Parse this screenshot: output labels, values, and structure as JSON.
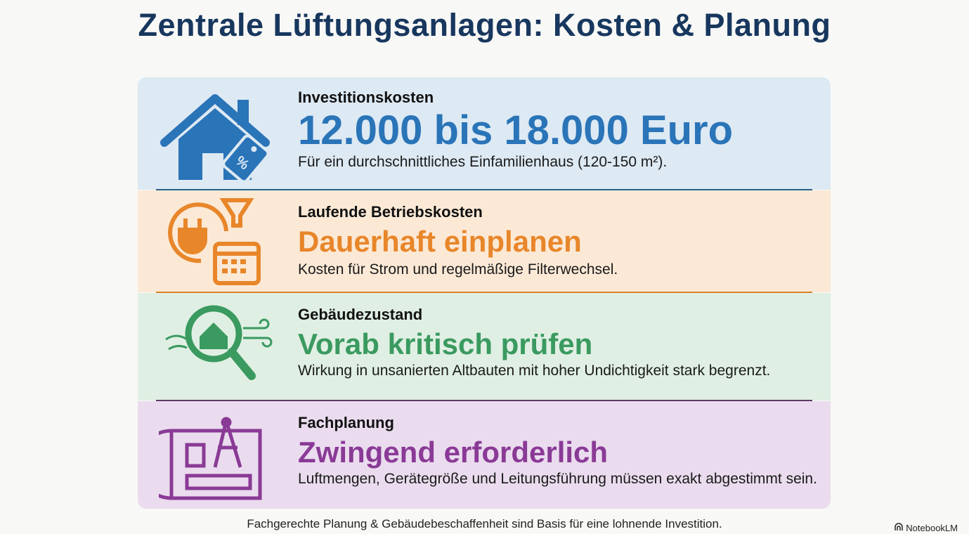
{
  "title": "Zentrale Lüftungsanlagen: Kosten & Planung",
  "sections": [
    {
      "label": "Investitionskosten",
      "headline": "12.000 bis 18.000 Euro",
      "body": "Für ein durchschnittliches Einfamilienhaus (120-150 m²).",
      "icon": "house-price-tag-icon",
      "color": "#2a74b8",
      "bg": "#dde9f3"
    },
    {
      "label": "Laufende Betriebskosten",
      "headline": "Dauerhaft einplanen",
      "body": "Kosten für Strom und regelmäßige Filterwechsel.",
      "icon": "plug-filter-calendar-icon",
      "color": "#e8862a",
      "bg": "#fbe9d6"
    },
    {
      "label": "Gebäudezustand",
      "headline": "Vorab kritisch prüfen",
      "body": "Wirkung in unsanierten Altbauten mit hoher Undichtigkeit stark begrenzt.",
      "icon": "magnifier-house-icon",
      "color": "#3a9a60",
      "bg": "#e0efe3"
    },
    {
      "label": "Fachplanung",
      "headline": "Zwingend erforderlich",
      "body": "Luftmengen, Gerätegröße und Leitungsführung müssen exakt abgestimmt sein.",
      "icon": "blueprint-compass-icon",
      "color": "#8a3a96",
      "bg": "#eadcee"
    }
  ],
  "footer": "Fachgerechte Planung & Gebäudebeschaffenheit sind Basis für eine lohnende Investition.",
  "brand": "NotebookLM"
}
